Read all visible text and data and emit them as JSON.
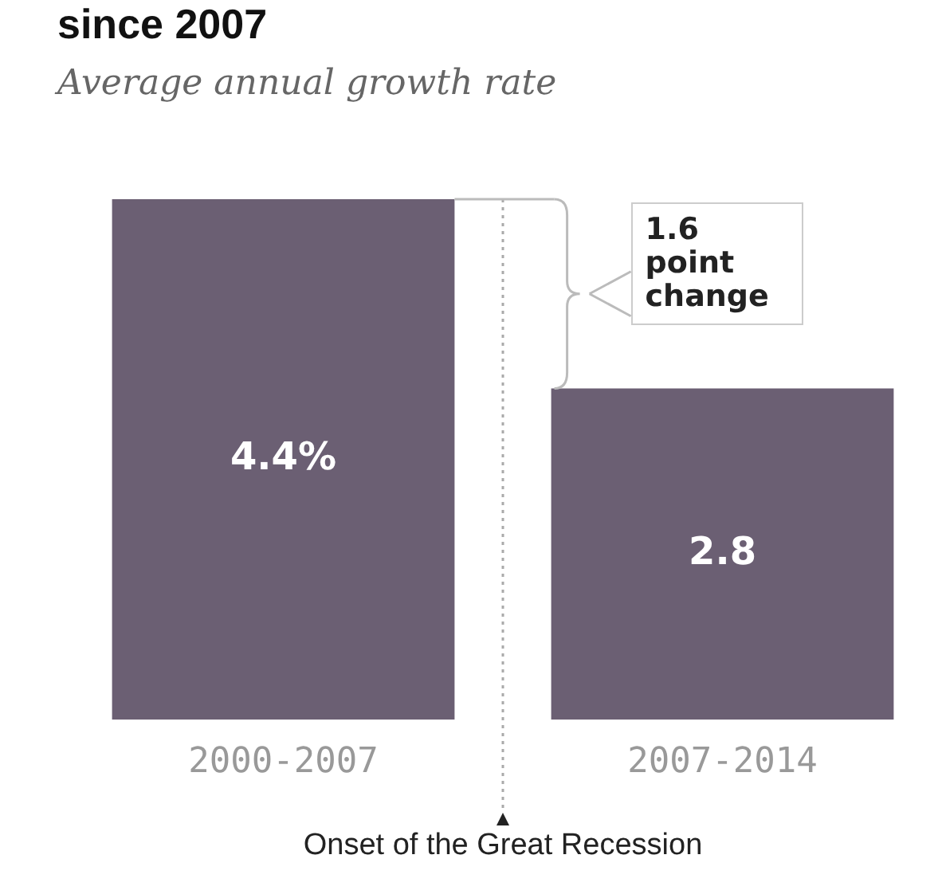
{
  "chart_data": {
    "type": "bar",
    "title": "since 2007",
    "subtitle": "Average annual growth rate",
    "categories": [
      "2000-2007",
      "2007-2014"
    ],
    "series": [
      {
        "color": "#6b5f73",
        "values": [
          4.4,
          2.8
        ],
        "value_labels": [
          "4.4%",
          "2.8"
        ]
      }
    ],
    "annotations": [
      "1.6 point change",
      "Onset of the Great Recession"
    ],
    "tick_labels": "x",
    "grid": false,
    "legend": false
  }
}
